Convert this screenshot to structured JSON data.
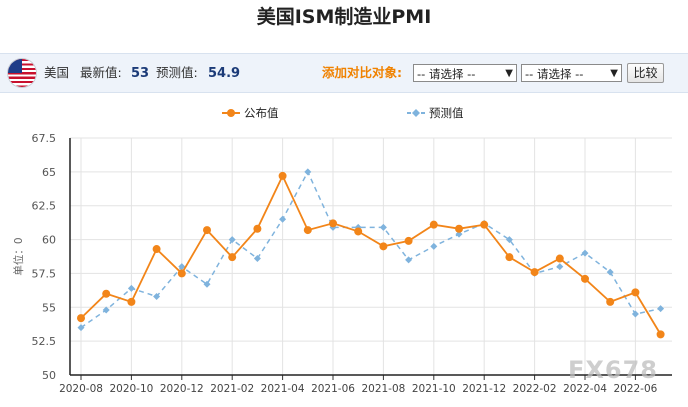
{
  "page": {
    "title": "美国ISM制造业PMI"
  },
  "info": {
    "country": "美国",
    "latest_label": "最新值:",
    "latest_value": "53",
    "forecast_label": "预测值:",
    "forecast_value": "54.9",
    "compare_label": "添加对比对象:",
    "select1": "-- 请选择 --",
    "select2": "-- 请选择 --",
    "compare_button": "比较",
    "flag_icon": "us-flag-icon"
  },
  "watermark": "FX678",
  "chart_data": {
    "type": "line",
    "title": "美国ISM制造业PMI",
    "ylabel": "单位：0",
    "xlabel": "",
    "ylim": [
      50,
      67.5
    ],
    "yticks": [
      50,
      52.5,
      55,
      57.5,
      60,
      62.5,
      65,
      67.5
    ],
    "grid": true,
    "legend_position": "top-center",
    "x_tick_labels": [
      "2020-08",
      "2020-10",
      "2020-12",
      "2021-02",
      "2021-04",
      "2021-06",
      "2021-08",
      "2021-10",
      "2021-12",
      "2022-02",
      "2022-04",
      "2022-06"
    ],
    "x": [
      "2020-08",
      "2020-09",
      "2020-10",
      "2020-11",
      "2020-12",
      "2021-01",
      "2021-02",
      "2021-03",
      "2021-04",
      "2021-05",
      "2021-06",
      "2021-07",
      "2021-08",
      "2021-09",
      "2021-10",
      "2021-11",
      "2021-12",
      "2022-01",
      "2022-02",
      "2022-03",
      "2022-04",
      "2022-05",
      "2022-06",
      "2022-07"
    ],
    "series": [
      {
        "name": "公布值",
        "color": "#f28519",
        "style": "solid",
        "values": [
          54.2,
          56.0,
          55.4,
          59.3,
          57.5,
          60.7,
          58.7,
          60.8,
          64.7,
          60.7,
          61.2,
          60.6,
          59.5,
          59.9,
          61.1,
          60.8,
          61.1,
          58.7,
          57.6,
          58.6,
          57.1,
          55.4,
          56.1,
          53.0
        ]
      },
      {
        "name": "预测值",
        "color": "#7fb3dd",
        "style": "dashed",
        "values": [
          53.5,
          54.8,
          56.4,
          55.8,
          58.0,
          56.7,
          60.0,
          58.6,
          61.5,
          65.0,
          60.9,
          60.9,
          60.9,
          58.5,
          59.5,
          60.4,
          61.2,
          60.0,
          57.5,
          58.0,
          59.0,
          57.6,
          54.5,
          54.9
        ]
      }
    ]
  }
}
